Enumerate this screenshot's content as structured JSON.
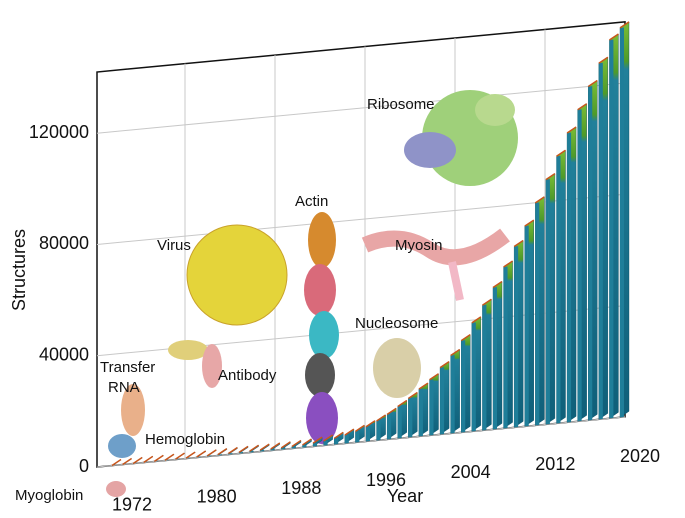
{
  "chart_data": {
    "type": "bar3d",
    "x": [
      1972,
      1973,
      1974,
      1975,
      1976,
      1977,
      1978,
      1979,
      1980,
      1981,
      1982,
      1983,
      1984,
      1985,
      1986,
      1987,
      1988,
      1989,
      1990,
      1991,
      1992,
      1993,
      1994,
      1995,
      1996,
      1997,
      1998,
      1999,
      2000,
      2001,
      2002,
      2003,
      2004,
      2005,
      2006,
      2007,
      2008,
      2009,
      2010,
      2011,
      2012,
      2013,
      2014,
      2015,
      2016,
      2017,
      2018,
      2019,
      2020
    ],
    "values": [
      10,
      20,
      40,
      60,
      80,
      100,
      130,
      160,
      200,
      250,
      300,
      350,
      400,
      450,
      500,
      550,
      600,
      700,
      900,
      1200,
      1600,
      2200,
      3000,
      4000,
      5300,
      7000,
      9000,
      11500,
      14000,
      17000,
      20000,
      24000,
      28000,
      33000,
      39000,
      45000,
      51000,
      58000,
      65000,
      72000,
      80000,
      88000,
      96000,
      104000,
      112000,
      120000,
      128000,
      136000,
      140000
    ],
    "ylim": [
      0,
      142000
    ],
    "yticks": [
      0,
      40000,
      80000,
      120000
    ],
    "xlim": [
      1972,
      2020
    ],
    "xticks": [
      1972,
      1980,
      1988,
      1996,
      2004,
      2012,
      2020
    ],
    "xlabel": "Year",
    "ylabel": "Structures",
    "grid": true,
    "top_color": "#6aa82c",
    "side_color": "#1f7e99",
    "annotations": [
      "Myoglobin",
      "Hemoglobin",
      "Transfer RNA",
      "Antibody",
      "Virus",
      "Actin",
      "Myosin",
      "Nucleosome",
      "Ribosome"
    ]
  }
}
